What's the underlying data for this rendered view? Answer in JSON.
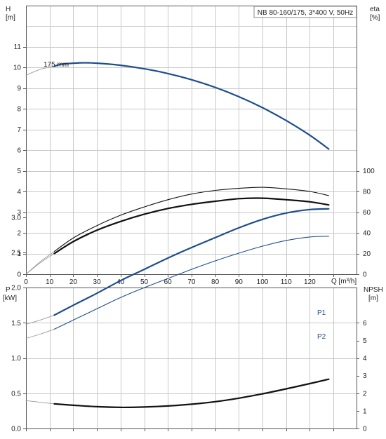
{
  "chart_data": [
    {
      "type": "line",
      "title": "NB 80-160/175, 3*400 V, 50Hz",
      "xlabel": "Q [m³/h]",
      "xlim": [
        0,
        130
      ],
      "x_ticks": [
        "0",
        "10",
        "20",
        "30",
        "40",
        "50",
        "60",
        "70",
        "80",
        "90",
        "100",
        "110",
        "120"
      ],
      "left_axis": {
        "label_line1": "H",
        "label_line2": "[m]",
        "ylim": [
          0,
          12
        ],
        "ticks": [
          "0",
          "1",
          "2",
          "3",
          "4",
          "5",
          "6",
          "7",
          "8",
          "9",
          "10",
          "11"
        ]
      },
      "right_axis": {
        "label_line1": "eta",
        "label_line2": "[%]",
        "ylim": [
          0,
          120
        ],
        "ticks": [
          "0",
          "20",
          "40",
          "60",
          "80",
          "100"
        ]
      },
      "annotation": "175 mm",
      "grid": true,
      "series": [
        {
          "name": "175 mm",
          "axis": "left",
          "color": "#1f4e8c",
          "style": "thick",
          "lead_in": {
            "x": [
              0,
              6,
              12
            ],
            "y": [
              9.62,
              9.9,
              10.05
            ]
          },
          "x": [
            12,
            15,
            20,
            25,
            30,
            40,
            50,
            60,
            70,
            80,
            90,
            100,
            110,
            120,
            128
          ],
          "y": [
            10.05,
            10.15,
            10.2,
            10.22,
            10.2,
            10.1,
            9.93,
            9.7,
            9.4,
            9.03,
            8.58,
            8.05,
            7.43,
            6.72,
            6.05
          ]
        },
        {
          "axis": "right",
          "color": "#111111",
          "style": "thin",
          "lead_in": {
            "x": [
              0,
              6,
              12
            ],
            "y": [
              0,
              12,
              22
            ]
          },
          "x": [
            12,
            20,
            30,
            40,
            50,
            60,
            70,
            80,
            90,
            100,
            110,
            120,
            128
          ],
          "y": [
            22,
            35,
            47,
            57,
            65,
            72,
            77.5,
            81,
            83,
            84,
            82.5,
            80,
            76
          ]
        },
        {
          "axis": "right",
          "color": "#111111",
          "style": "thick",
          "lead_in": {
            "x": [
              0,
              6,
              12
            ],
            "y": [
              0,
              11,
              20
            ]
          },
          "x": [
            12,
            20,
            30,
            40,
            50,
            60,
            70,
            80,
            90,
            100,
            110,
            120,
            128
          ],
          "y": [
            20,
            31.5,
            42.5,
            51,
            58,
            63.5,
            67.5,
            70.5,
            73,
            73.5,
            72,
            70,
            67
          ]
        }
      ]
    },
    {
      "type": "line",
      "xlim": [
        0,
        130
      ],
      "left_axis": {
        "label_line1": "P",
        "label_line2": "[kW]",
        "ylim": [
          0,
          3.5
        ],
        "ticks": [
          "0.0",
          "0.5",
          "1.0",
          "1.5",
          "2.0",
          "2.5",
          "3.0"
        ]
      },
      "right_axis": {
        "label_line1": "NPSH",
        "label_line2": "[m]",
        "ylim": [
          0,
          7
        ],
        "ticks": [
          "0",
          "1",
          "2",
          "3",
          "4",
          "5",
          "6"
        ]
      },
      "grid": true,
      "series": [
        {
          "name": "P1",
          "axis": "left",
          "color": "#1f4e8c",
          "style": "thick",
          "lead_in": {
            "x": [
              0,
              6,
              12
            ],
            "y": [
              1.48,
              1.54,
              1.61
            ]
          },
          "x": [
            12,
            20,
            30,
            40,
            50,
            60,
            70,
            80,
            90,
            100,
            110,
            120,
            128
          ],
          "y": [
            1.61,
            1.75,
            1.92,
            2.1,
            2.26,
            2.42,
            2.57,
            2.71,
            2.85,
            2.97,
            3.06,
            3.11,
            3.12
          ]
        },
        {
          "name": "P2",
          "axis": "left",
          "color": "#1f4e8c",
          "style": "thin",
          "lead_in": {
            "x": [
              0,
              6,
              12
            ],
            "y": [
              1.28,
              1.34,
              1.41
            ]
          },
          "x": [
            12,
            20,
            30,
            40,
            50,
            60,
            70,
            80,
            90,
            100,
            110,
            120,
            128
          ],
          "y": [
            1.41,
            1.54,
            1.7,
            1.86,
            2.0,
            2.13,
            2.26,
            2.38,
            2.49,
            2.59,
            2.67,
            2.72,
            2.73
          ]
        },
        {
          "axis": "right",
          "color": "#111111",
          "style": "thick",
          "lead_in": {
            "x": [
              0,
              6,
              12
            ],
            "y": [
              1.58,
              1.49,
              1.4
            ]
          },
          "x": [
            12,
            20,
            30,
            40,
            50,
            60,
            70,
            80,
            90,
            100,
            110,
            120,
            128
          ],
          "y": [
            1.4,
            1.32,
            1.24,
            1.2,
            1.22,
            1.28,
            1.38,
            1.52,
            1.72,
            1.97,
            2.25,
            2.55,
            2.8
          ]
        }
      ]
    }
  ]
}
